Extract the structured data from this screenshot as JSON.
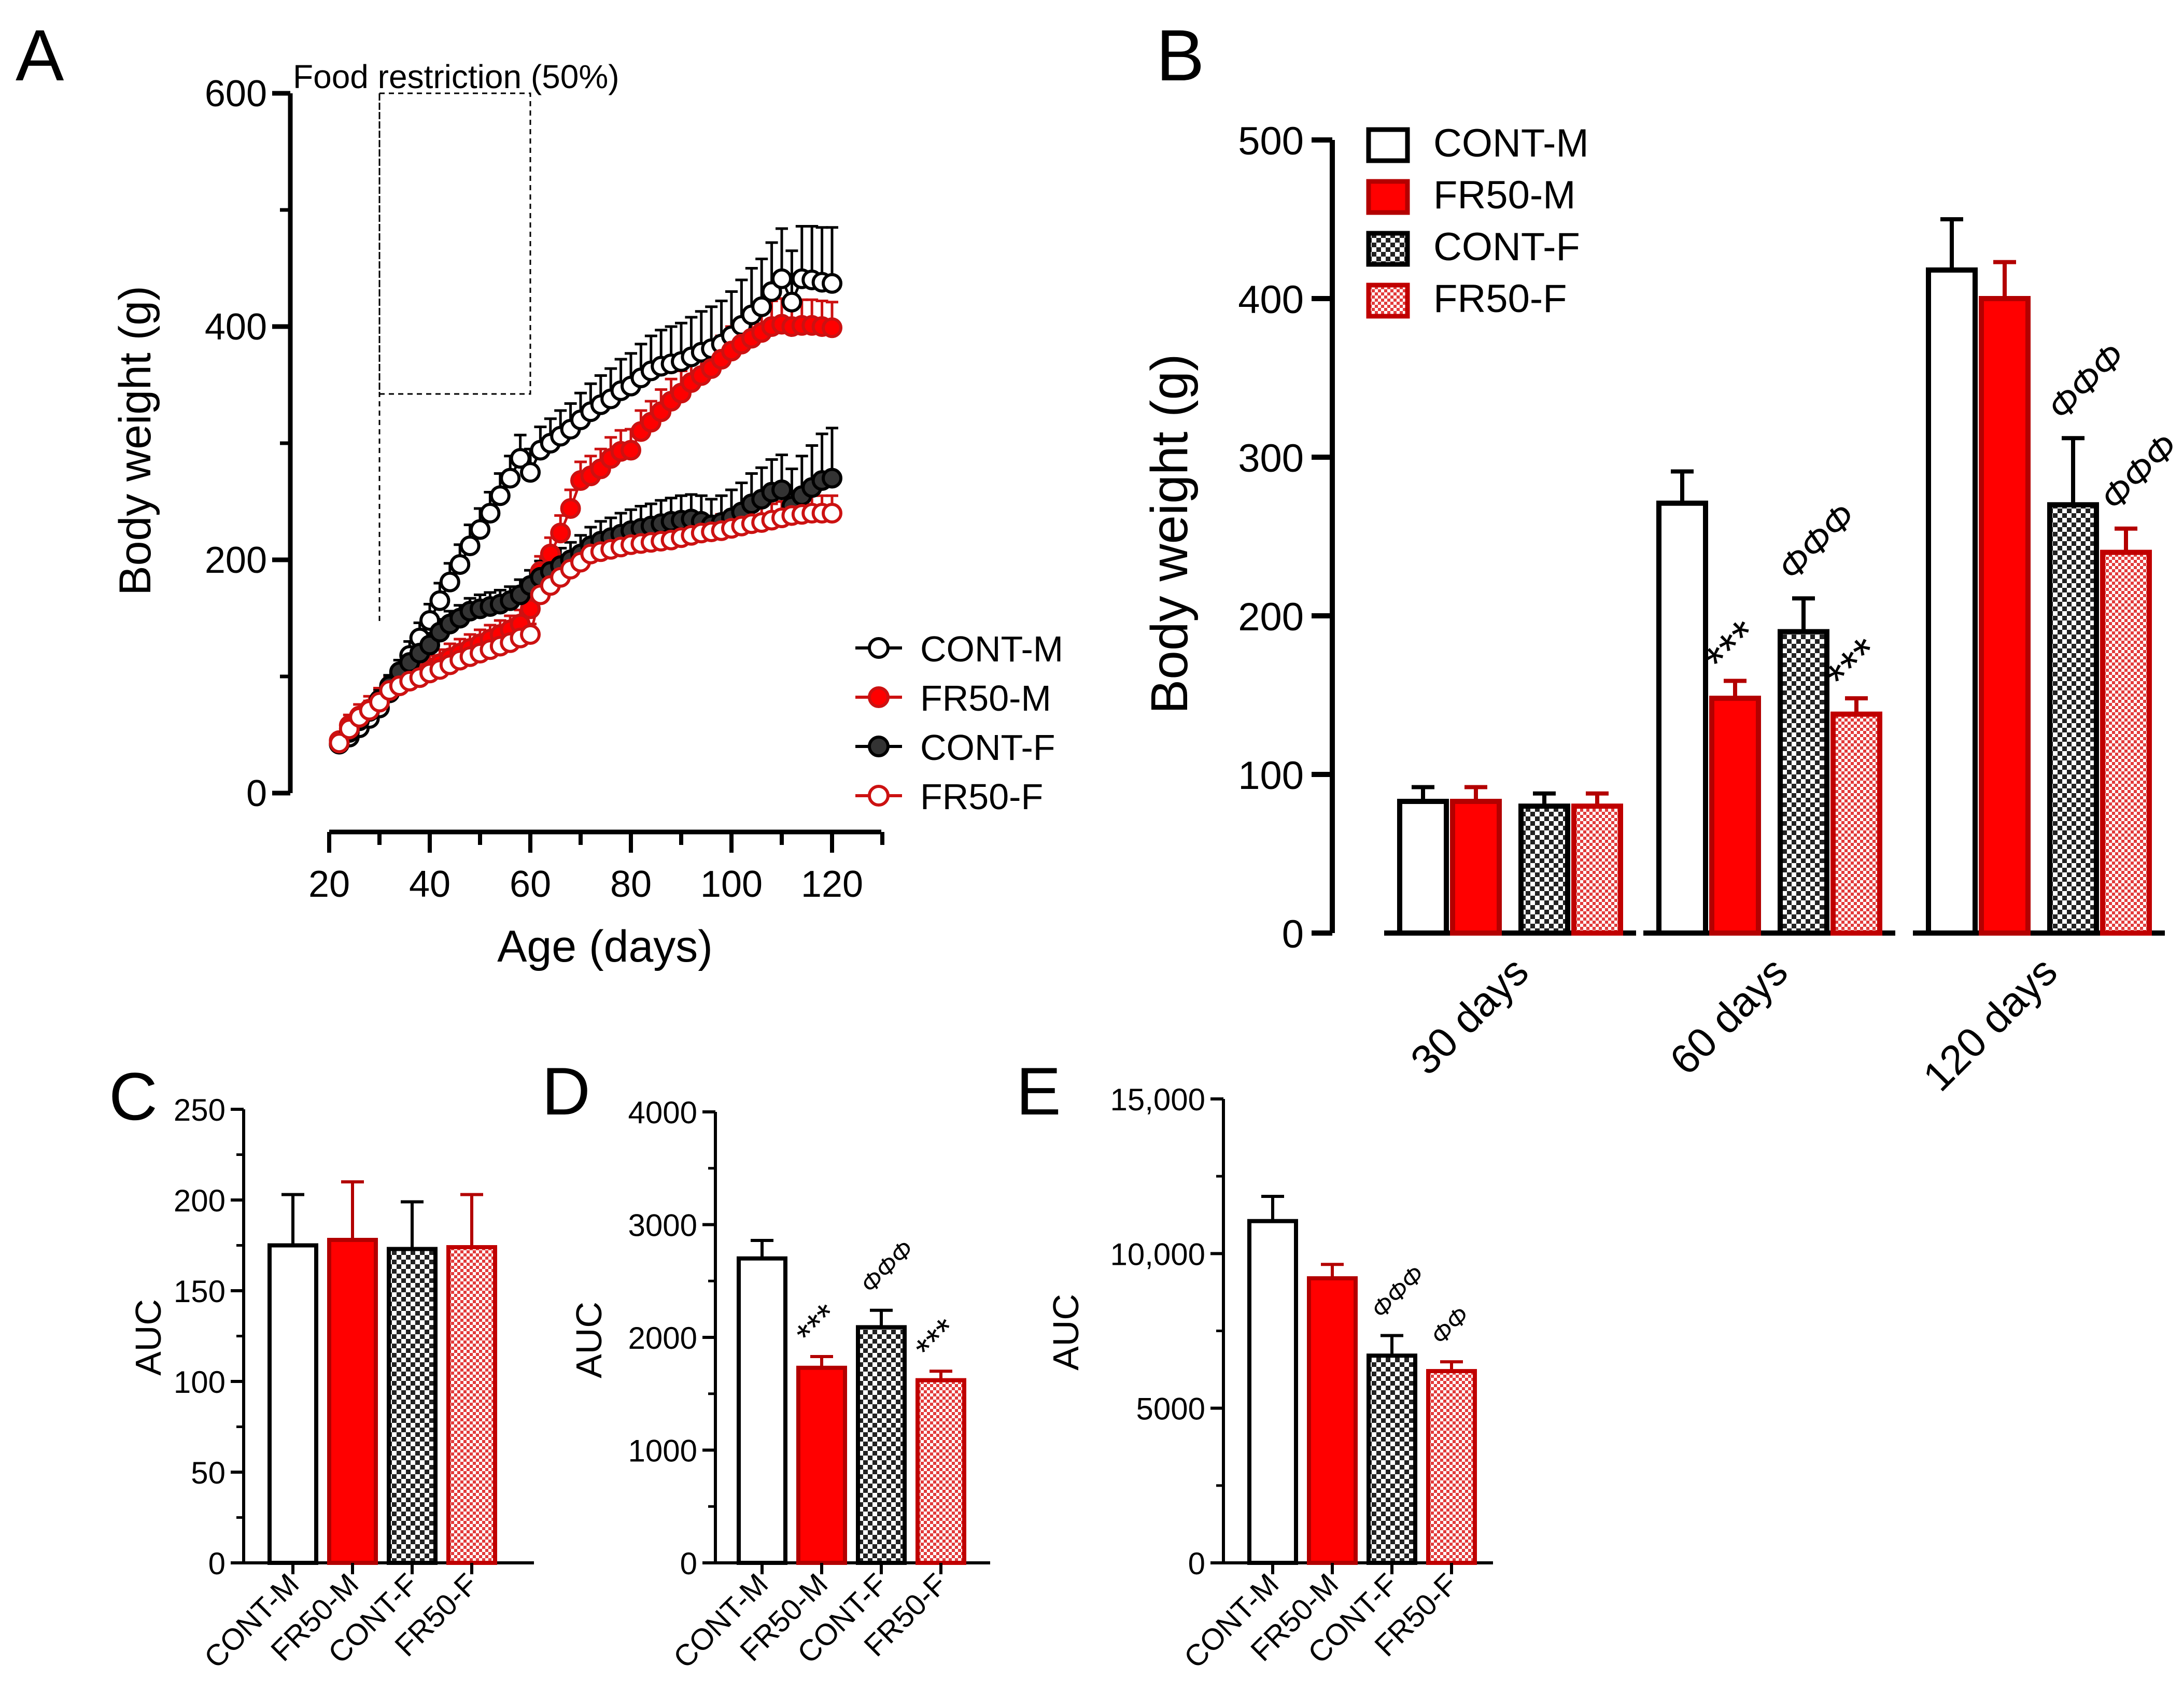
{
  "colors": {
    "control": "#000000",
    "restricted": "#cc1111",
    "fill_red": "#ff0000",
    "pattern_dark": "#222222",
    "pattern_light_red": "#f5a0a0"
  },
  "chart_data": [
    {
      "panel": "A",
      "type": "line",
      "xlabel": "Age (days)",
      "ylabel": "Body weight (g)",
      "xlim": [
        17,
        130
      ],
      "ylim": [
        0,
        600
      ],
      "xticks": [
        "20",
        "40",
        "60",
        "80",
        "100",
        "120"
      ],
      "yticks": [
        "0",
        "200",
        "400",
        "600"
      ],
      "annotation": "Food restriction (50%)",
      "restriction_window": [
        30,
        60
      ],
      "x": [
        22,
        24,
        26,
        28,
        30,
        32,
        34,
        36,
        38,
        40,
        42,
        44,
        46,
        48,
        50,
        52,
        54,
        56,
        58,
        60,
        62,
        64,
        66,
        68,
        70,
        72,
        74,
        76,
        78,
        80,
        82,
        84,
        86,
        88,
        90,
        92,
        94,
        96,
        98,
        100,
        102,
        104,
        106,
        108,
        110,
        112,
        114,
        116,
        118,
        120
      ],
      "series": [
        {
          "name": "CONT-M",
          "values": [
            42,
            48,
            56,
            64,
            73,
            86,
            103,
            118,
            133,
            148,
            165,
            181,
            196,
            212,
            226,
            240,
            255,
            270,
            287,
            275,
            294,
            300,
            306,
            312,
            320,
            327,
            333,
            338,
            345,
            349,
            356,
            362,
            366,
            368,
            370,
            374,
            378,
            381,
            385,
            392,
            401,
            410,
            417,
            430,
            441,
            421,
            441,
            440,
            438,
            437
          ],
          "err": [
            4,
            5,
            6,
            7,
            8,
            10,
            11,
            12,
            13,
            14,
            15,
            16,
            17,
            18,
            18,
            18,
            19,
            19,
            20,
            20,
            20,
            21,
            22,
            22,
            23,
            24,
            25,
            26,
            27,
            28,
            29,
            30,
            31,
            32,
            33,
            34,
            35,
            36,
            37,
            38,
            39,
            40,
            41,
            42,
            43,
            44,
            45,
            46,
            47,
            48
          ]
        },
        {
          "name": "FR50-M",
          "values": [
            45,
            58,
            66,
            72,
            78,
            88,
            92,
            96,
            101,
            106,
            111,
            116,
            120,
            124,
            128,
            132,
            136,
            140,
            145,
            158,
            190,
            205,
            223,
            244,
            268,
            272,
            278,
            287,
            293,
            294,
            310,
            318,
            327,
            336,
            343,
            352,
            358,
            364,
            372,
            379,
            385,
            390,
            395,
            400,
            402,
            400,
            401,
            401,
            400,
            399
          ],
          "err": [
            6,
            9,
            10,
            11,
            12,
            12,
            12,
            12,
            12,
            12,
            12,
            12,
            12,
            12,
            12,
            12,
            12,
            12,
            12,
            12,
            13,
            14,
            15,
            16,
            16,
            17,
            17,
            18,
            18,
            18,
            18,
            18,
            19,
            19,
            19,
            20,
            20,
            20,
            20,
            21,
            21,
            21,
            21,
            22,
            22,
            22,
            22,
            22,
            22,
            22
          ]
        },
        {
          "name": "CONT-F",
          "values": [
            42,
            52,
            62,
            70,
            80,
            92,
            104,
            112,
            120,
            127,
            138,
            145,
            150,
            156,
            158,
            160,
            162,
            165,
            170,
            178,
            185,
            190,
            195,
            200,
            205,
            212,
            216,
            219,
            222,
            225,
            227,
            229,
            231,
            233,
            234,
            235,
            233,
            230,
            232,
            236,
            241,
            248,
            252,
            258,
            260,
            246,
            255,
            262,
            268,
            270
          ],
          "err": [
            4,
            5,
            6,
            7,
            8,
            9,
            10,
            10,
            10,
            10,
            11,
            11,
            11,
            11,
            12,
            12,
            12,
            12,
            13,
            13,
            14,
            14,
            15,
            15,
            16,
            16,
            17,
            17,
            18,
            18,
            19,
            19,
            20,
            20,
            21,
            21,
            22,
            22,
            23,
            24,
            25,
            26,
            27,
            28,
            30,
            32,
            34,
            36,
            40,
            43
          ]
        },
        {
          "name": "FR50-F",
          "values": [
            43,
            55,
            65,
            71,
            78,
            88,
            92,
            96,
            99,
            103,
            106,
            110,
            114,
            117,
            120,
            123,
            126,
            129,
            133,
            136,
            170,
            178,
            185,
            192,
            198,
            205,
            207,
            209,
            211,
            213,
            214,
            215,
            216,
            217,
            219,
            221,
            223,
            224,
            225,
            227,
            229,
            231,
            232,
            234,
            236,
            238,
            239,
            240,
            240,
            240
          ],
          "err": [
            4,
            6,
            7,
            8,
            9,
            9,
            9,
            9,
            9,
            9,
            9,
            9,
            9,
            9,
            9,
            9,
            9,
            9,
            9,
            9,
            10,
            10,
            11,
            11,
            11,
            12,
            12,
            12,
            12,
            12,
            12,
            13,
            13,
            13,
            13,
            13,
            13,
            13,
            14,
            14,
            14,
            14,
            14,
            14,
            14,
            15,
            15,
            15,
            15,
            15
          ]
        }
      ],
      "legend": [
        "CONT-M",
        "FR50-M",
        "CONT-F",
        "FR50-F"
      ]
    },
    {
      "panel": "B",
      "type": "bar",
      "ylabel": "Body weight (g)",
      "ylim": [
        0,
        500
      ],
      "yticks": [
        "0",
        "100",
        "200",
        "300",
        "400",
        "500"
      ],
      "categories": [
        "30 days",
        "60 days",
        "120 days"
      ],
      "series": [
        {
          "name": "CONT-M",
          "values": [
            83,
            271,
            418
          ],
          "err": [
            9,
            20,
            32
          ]
        },
        {
          "name": "FR50-M",
          "values": [
            83,
            148,
            400
          ],
          "err": [
            9,
            11,
            23
          ]
        },
        {
          "name": "CONT-F",
          "values": [
            80,
            190,
            270
          ],
          "err": [
            8,
            21,
            42
          ]
        },
        {
          "name": "FR50-F",
          "values": [
            80,
            138,
            240
          ],
          "err": [
            8,
            10,
            15
          ]
        }
      ],
      "annotations": [
        {
          "group": "60 days",
          "series": "FR50-M",
          "text": "***"
        },
        {
          "group": "60 days",
          "series": "CONT-F",
          "text": "ΦΦΦ"
        },
        {
          "group": "60 days",
          "series": "FR50-F",
          "text": "***"
        },
        {
          "group": "120 days",
          "series": "CONT-F",
          "text": "ΦΦΦ"
        },
        {
          "group": "120 days",
          "series": "FR50-F",
          "text": "ΦΦΦ"
        }
      ],
      "legend": [
        "CONT-M",
        "FR50-M",
        "CONT-F",
        "FR50-F"
      ]
    },
    {
      "panel": "C",
      "type": "bar",
      "ylabel": "AUC",
      "ylim": [
        0,
        250
      ],
      "yticks": [
        "0",
        "50",
        "100",
        "150",
        "200",
        "250"
      ],
      "categories": [
        "CONT-M",
        "FR50-M",
        "CONT-F",
        "FR50-F"
      ],
      "values": [
        175,
        178,
        173,
        174
      ],
      "err": [
        28,
        32,
        26,
        29
      ],
      "annotations": []
    },
    {
      "panel": "D",
      "type": "bar",
      "ylabel": "AUC",
      "ylim": [
        0,
        4000
      ],
      "yticks": [
        "0",
        "1000",
        "2000",
        "3000",
        "4000"
      ],
      "categories": [
        "CONT-M",
        "FR50-M",
        "CONT-F",
        "FR50-F"
      ],
      "values": [
        2700,
        1730,
        2090,
        1620
      ],
      "err": [
        160,
        100,
        150,
        80
      ],
      "annotations": [
        {
          "series": "FR50-M",
          "text": "***"
        },
        {
          "series": "CONT-F",
          "text": "ΦΦΦ"
        },
        {
          "series": "FR50-F",
          "text": "***"
        }
      ]
    },
    {
      "panel": "E",
      "type": "bar",
      "ylabel": "AUC",
      "ylim": [
        0,
        15000
      ],
      "yticks": [
        "0",
        "5000",
        "10,000",
        "15,000"
      ],
      "categories": [
        "CONT-M",
        "FR50-M",
        "CONT-F",
        "FR50-F"
      ],
      "values": [
        11050,
        9200,
        6700,
        6200
      ],
      "err": [
        800,
        450,
        650,
        300
      ],
      "annotations": [
        {
          "series": "CONT-F",
          "text": "ΦΦΦ"
        },
        {
          "series": "FR50-F",
          "text": "ΦΦ"
        }
      ]
    }
  ]
}
